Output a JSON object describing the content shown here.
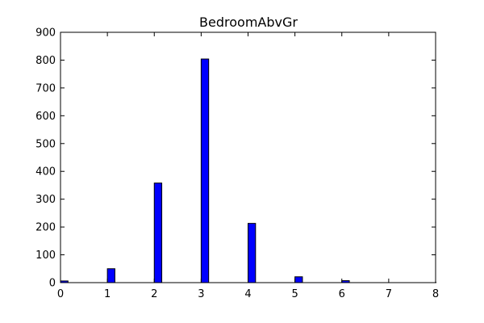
{
  "chart_data": {
    "type": "bar",
    "title": "BedroomAbvGr",
    "xlabel": "",
    "ylabel": "",
    "x": [
      0,
      1,
      2,
      3,
      4,
      5,
      6,
      8
    ],
    "values": [
      6,
      50,
      358,
      804,
      213,
      21,
      7,
      1
    ],
    "bar_width": 0.16,
    "xlim": [
      0,
      8
    ],
    "ylim": [
      0,
      900
    ],
    "xticks": [
      0,
      1,
      2,
      3,
      4,
      5,
      6,
      7,
      8
    ],
    "yticks": [
      0,
      100,
      200,
      300,
      400,
      500,
      600,
      700,
      800,
      900
    ],
    "grid": false,
    "legend": "none",
    "colors": {
      "bar_fill": "#0000ff",
      "bar_edge": "#000000",
      "axes": "#000000",
      "background": "#ffffff"
    }
  }
}
